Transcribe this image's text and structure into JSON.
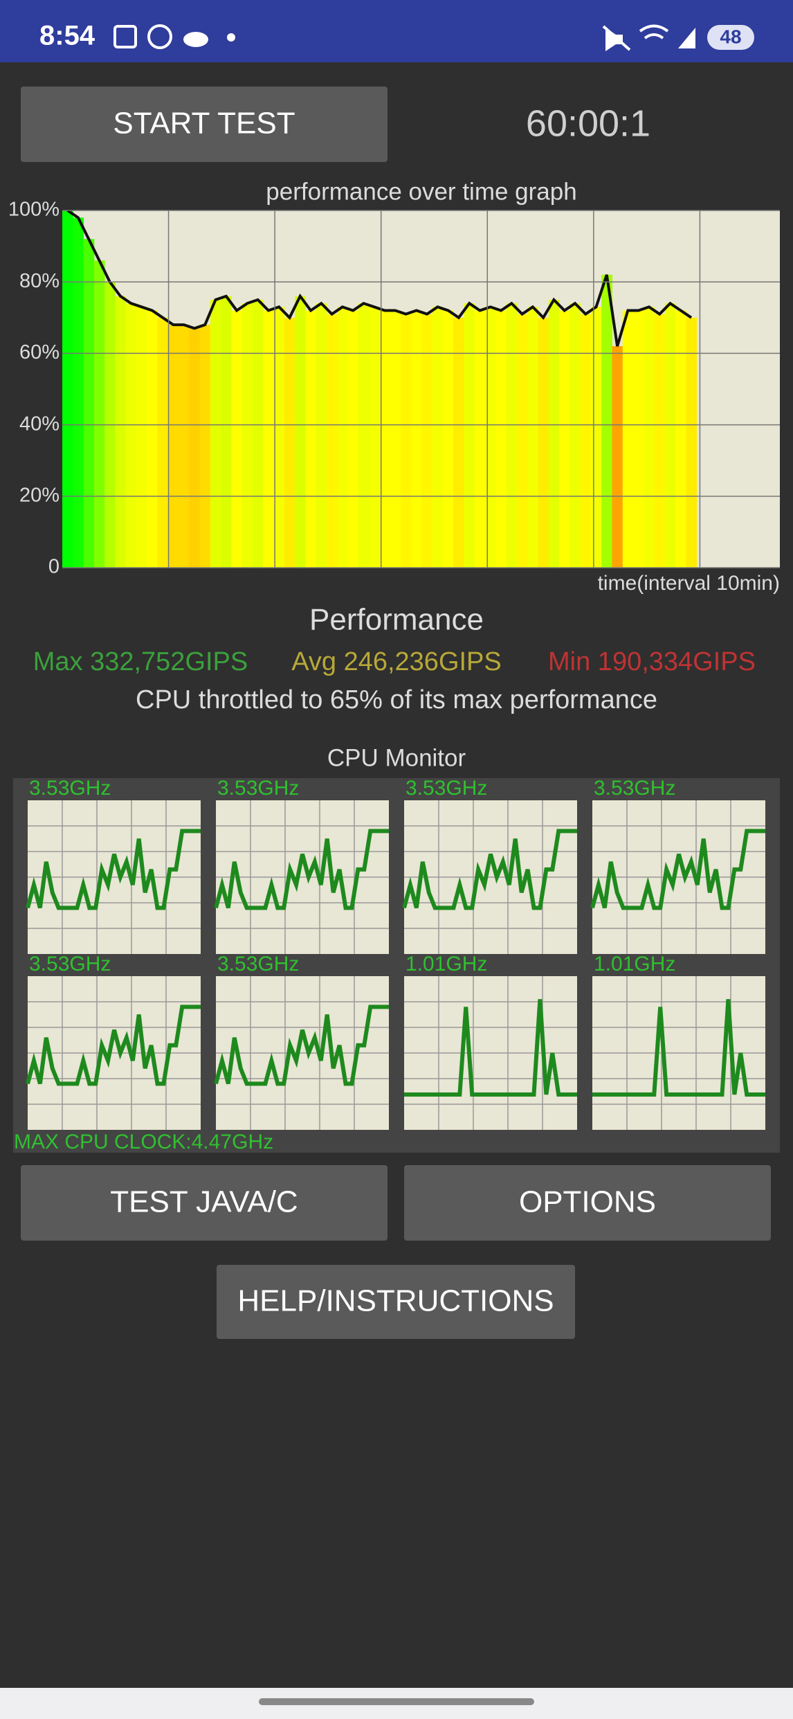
{
  "status_bar": {
    "time": "8:54",
    "battery": "48"
  },
  "buttons": {
    "start": "START TEST",
    "test": "TEST JAVA/C",
    "options": "OPTIONS",
    "help": "HELP/INSTRUCTIONS"
  },
  "timer": "60:00:1",
  "chart_data": {
    "type": "bar",
    "title": "performance over time graph",
    "xlabel": "time(interval 10min)",
    "values": [
      100,
      98,
      92,
      86,
      80,
      76,
      74,
      73,
      72,
      70,
      68,
      68,
      67,
      68,
      75,
      76,
      72,
      74,
      75,
      72,
      73,
      70,
      76,
      72,
      74,
      71,
      73,
      72,
      74,
      73,
      72,
      72,
      71,
      72,
      71,
      73,
      72,
      70,
      74,
      72,
      73,
      72,
      74,
      71,
      73,
      70,
      75,
      72,
      74,
      71,
      73,
      82,
      62,
      72,
      72,
      73,
      71,
      74,
      72,
      70
    ],
    "ylim": [
      0,
      100
    ],
    "yticks": [
      0,
      {
        "value": 20,
        "label": "20%"
      },
      {
        "value": 40,
        "label": "40%"
      },
      {
        "value": 60,
        "label": "60%"
      },
      {
        "value": 80,
        "label": "80%"
      },
      {
        "value": 100,
        "label": "100%"
      }
    ],
    "grid": true,
    "line_color": "#111111"
  },
  "performance": {
    "title": "Performance",
    "max": "Max 332,752GIPS",
    "avg": "Avg 246,236GIPS",
    "min": "Min 190,334GIPS",
    "note": "CPU throttled to 65% of its max performance"
  },
  "cpu_monitor": {
    "title": "CPU Monitor",
    "max_clock": "MAX CPU CLOCK:4.47GHz",
    "line_color": "#1e8a1e",
    "cores": [
      {
        "clock": "3.53GHz",
        "history": [
          30,
          45,
          30,
          60,
          40,
          30,
          30,
          30,
          30,
          45,
          30,
          30,
          55,
          45,
          65,
          50,
          60,
          45,
          75,
          40,
          55,
          30,
          30,
          55,
          55,
          80,
          80,
          80,
          80
        ]
      },
      {
        "clock": "3.53GHz",
        "history": [
          30,
          45,
          30,
          60,
          40,
          30,
          30,
          30,
          30,
          45,
          30,
          30,
          55,
          45,
          65,
          50,
          60,
          45,
          75,
          40,
          55,
          30,
          30,
          55,
          55,
          80,
          80,
          80,
          80
        ]
      },
      {
        "clock": "3.53GHz",
        "history": [
          30,
          45,
          30,
          60,
          40,
          30,
          30,
          30,
          30,
          45,
          30,
          30,
          55,
          45,
          65,
          50,
          60,
          45,
          75,
          40,
          55,
          30,
          30,
          55,
          55,
          80,
          80,
          80,
          80
        ]
      },
      {
        "clock": "3.53GHz",
        "history": [
          30,
          45,
          30,
          60,
          40,
          30,
          30,
          30,
          30,
          45,
          30,
          30,
          55,
          45,
          65,
          50,
          60,
          45,
          75,
          40,
          55,
          30,
          30,
          55,
          55,
          80,
          80,
          80,
          80
        ]
      },
      {
        "clock": "3.53GHz",
        "history": [
          30,
          45,
          30,
          60,
          40,
          30,
          30,
          30,
          30,
          45,
          30,
          30,
          55,
          45,
          65,
          50,
          60,
          45,
          75,
          40,
          55,
          30,
          30,
          55,
          55,
          80,
          80,
          80,
          80
        ]
      },
      {
        "clock": "3.53GHz",
        "history": [
          30,
          45,
          30,
          60,
          40,
          30,
          30,
          30,
          30,
          45,
          30,
          30,
          55,
          45,
          65,
          50,
          60,
          45,
          75,
          40,
          55,
          30,
          30,
          55,
          55,
          80,
          80,
          80,
          80
        ]
      },
      {
        "clock": "1.01GHz",
        "history": [
          23,
          23,
          23,
          23,
          23,
          23,
          23,
          23,
          23,
          23,
          80,
          23,
          23,
          23,
          23,
          23,
          23,
          23,
          23,
          23,
          23,
          23,
          85,
          23,
          50,
          23,
          23,
          23,
          23
        ]
      },
      {
        "clock": "1.01GHz",
        "history": [
          23,
          23,
          23,
          23,
          23,
          23,
          23,
          23,
          23,
          23,
          23,
          80,
          23,
          23,
          23,
          23,
          23,
          23,
          23,
          23,
          23,
          23,
          85,
          23,
          50,
          23,
          23,
          23,
          23
        ]
      }
    ]
  }
}
